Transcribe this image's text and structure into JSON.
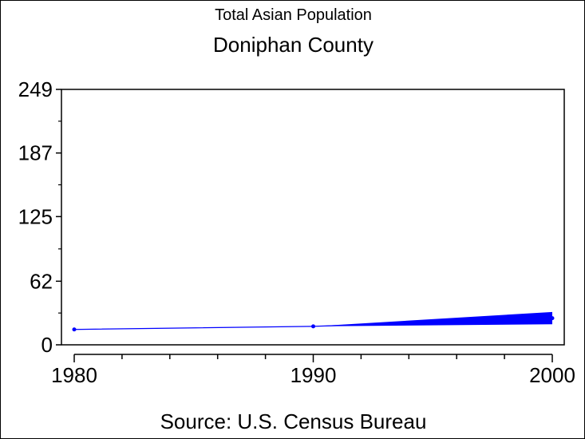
{
  "chart_data": {
    "type": "line",
    "subtitle": "Total Asian Population",
    "title": "Doniphan County",
    "source": "Source: U.S. Census Bureau",
    "xlabel": "",
    "ylabel": "",
    "x": [
      1980,
      1990,
      2000
    ],
    "xlim": [
      1980,
      2000
    ],
    "x_ticks": [
      "1980",
      "1990",
      "2000"
    ],
    "ylim": [
      0,
      249
    ],
    "y_ticks": [
      "0",
      "62",
      "125",
      "187",
      "249"
    ],
    "series": [
      {
        "values": [
          15,
          18,
          26
        ],
        "color": "#0000ff"
      }
    ],
    "band_2000": [
      20,
      32
    ],
    "grid": false,
    "legend": "none"
  }
}
